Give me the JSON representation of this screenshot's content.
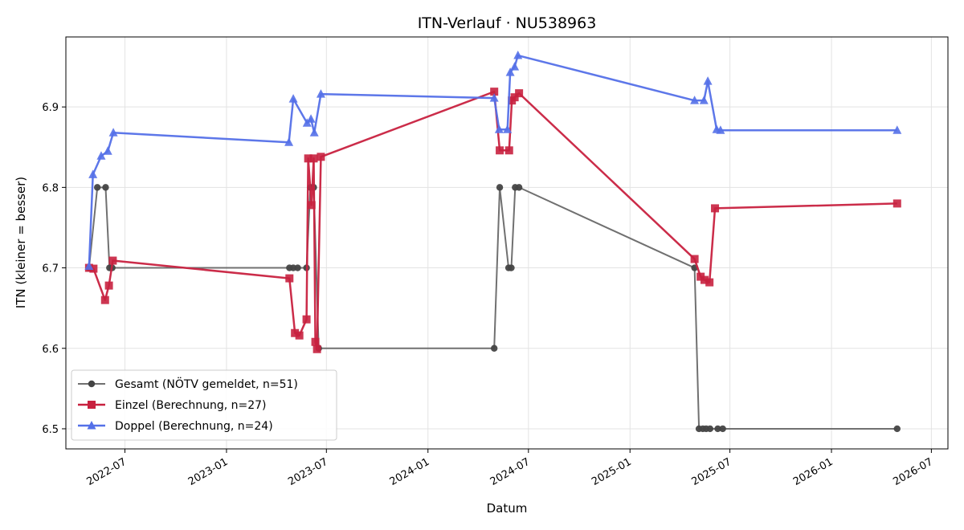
{
  "chart_data": {
    "type": "line",
    "title": "ITN-Verlauf · NU538963",
    "xlabel": "Datum",
    "ylabel": "ITN  (kleiner = besser)",
    "x_type": "date",
    "xlim": [
      "2022-03-16",
      "2026-07-31"
    ],
    "ylim": [
      6.475,
      6.987
    ],
    "x_ticks": [
      "2022-07-01",
      "2023-01-01",
      "2023-07-01",
      "2024-01-01",
      "2024-07-01",
      "2025-01-01",
      "2025-07-01",
      "2026-01-01",
      "2026-07-01"
    ],
    "x_tick_labels": [
      "2022-07",
      "2023-01",
      "2023-07",
      "2024-01",
      "2024-07",
      "2025-01",
      "2025-07",
      "2026-01",
      "2026-07"
    ],
    "y_ticks": [
      6.5,
      6.6,
      6.7,
      6.8,
      6.9
    ],
    "y_tick_labels": [
      "6.5",
      "6.6",
      "6.7",
      "6.8",
      "6.9"
    ],
    "grid": true,
    "legend_position": "lower-left",
    "series": [
      {
        "name": "Gesamt (NÖTV gemeldet, n=51)",
        "color": "#707070",
        "marker": "circle",
        "points": [
          [
            "2022-04-27",
            6.7
          ],
          [
            "2022-05-12",
            6.8
          ],
          [
            "2022-05-27",
            6.8
          ],
          [
            "2022-06-03",
            6.7
          ],
          [
            "2022-06-08",
            6.7
          ],
          [
            "2023-04-25",
            6.7
          ],
          [
            "2023-05-02",
            6.7
          ],
          [
            "2023-05-10",
            6.7
          ],
          [
            "2023-05-26",
            6.7
          ],
          [
            "2023-06-02",
            6.8
          ],
          [
            "2023-06-08",
            6.8
          ],
          [
            "2023-06-17",
            6.6
          ],
          [
            "2024-04-30",
            6.6
          ],
          [
            "2024-05-10",
            6.8
          ],
          [
            "2024-05-26",
            6.7
          ],
          [
            "2024-05-31",
            6.7
          ],
          [
            "2024-06-07",
            6.8
          ],
          [
            "2024-06-14",
            6.8
          ],
          [
            "2025-04-28",
            6.7
          ],
          [
            "2025-05-06",
            6.5
          ],
          [
            "2025-05-13",
            6.5
          ],
          [
            "2025-05-19",
            6.5
          ],
          [
            "2025-05-26",
            6.5
          ],
          [
            "2025-06-09",
            6.5
          ],
          [
            "2025-06-18",
            6.5
          ],
          [
            "2026-04-30",
            6.5
          ]
        ]
      },
      {
        "name": "Einzel (Berechnung, n=27)",
        "color": "#c8213f",
        "marker": "square",
        "points": [
          [
            "2022-04-27",
            6.7
          ],
          [
            "2022-05-05",
            6.699
          ],
          [
            "2022-05-26",
            6.66
          ],
          [
            "2022-06-02",
            6.678
          ],
          [
            "2022-06-09",
            6.709
          ],
          [
            "2023-04-25",
            6.687
          ],
          [
            "2023-05-05",
            6.619
          ],
          [
            "2023-05-13",
            6.616
          ],
          [
            "2023-05-26",
            6.636
          ],
          [
            "2023-05-29",
            6.836
          ],
          [
            "2023-06-04",
            6.778
          ],
          [
            "2023-06-08",
            6.836
          ],
          [
            "2023-06-11",
            6.608
          ],
          [
            "2023-06-14",
            6.599
          ],
          [
            "2023-06-21",
            6.838
          ],
          [
            "2024-04-30",
            6.919
          ],
          [
            "2024-05-10",
            6.846
          ],
          [
            "2024-05-27",
            6.846
          ],
          [
            "2024-06-01",
            6.908
          ],
          [
            "2024-06-06",
            6.912
          ],
          [
            "2024-06-14",
            6.917
          ],
          [
            "2025-04-28",
            6.711
          ],
          [
            "2025-05-09",
            6.689
          ],
          [
            "2025-05-16",
            6.685
          ],
          [
            "2025-05-25",
            6.682
          ],
          [
            "2025-06-04",
            6.774
          ],
          [
            "2026-04-30",
            6.78
          ]
        ]
      },
      {
        "name": "Doppel (Berechnung, n=24)",
        "color": "#5470e8",
        "marker": "triangle",
        "points": [
          [
            "2022-04-27",
            6.702
          ],
          [
            "2022-05-04",
            6.816
          ],
          [
            "2022-05-19",
            6.839
          ],
          [
            "2022-05-31",
            6.845
          ],
          [
            "2022-06-10",
            6.868
          ],
          [
            "2023-04-24",
            6.856
          ],
          [
            "2023-05-02",
            6.91
          ],
          [
            "2023-05-27",
            6.88
          ],
          [
            "2023-06-03",
            6.885
          ],
          [
            "2023-06-09",
            6.868
          ],
          [
            "2023-06-21",
            6.916
          ],
          [
            "2024-04-30",
            6.911
          ],
          [
            "2024-05-09",
            6.872
          ],
          [
            "2024-05-24",
            6.872
          ],
          [
            "2024-05-29",
            6.943
          ],
          [
            "2024-06-06",
            6.95
          ],
          [
            "2024-06-12",
            6.964
          ],
          [
            "2025-04-28",
            6.908
          ],
          [
            "2025-05-15",
            6.908
          ],
          [
            "2025-05-22",
            6.932
          ],
          [
            "2025-06-07",
            6.872
          ],
          [
            "2025-06-14",
            6.871
          ],
          [
            "2026-04-30",
            6.871
          ]
        ]
      }
    ]
  }
}
